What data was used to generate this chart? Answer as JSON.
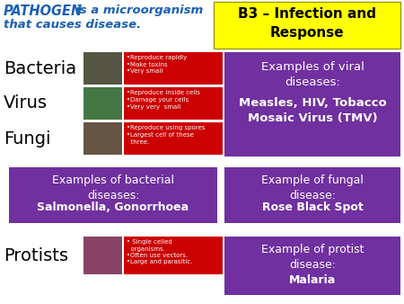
{
  "bg_color": "#ffffff",
  "title_pathogen": "PATHOGEN",
  "title_rest1": "  is a microorganism",
  "title_rest2": "that causes disease.",
  "title_color": "#1a5fb4",
  "header_box_color": "#ffff00",
  "header_text": "B3 – Infection and\nResponse",
  "purple": "#7030a0",
  "red": "#cc0000",
  "white": "#ffffff",
  "black": "#000000",
  "pathogen_labels": [
    "Bacteria",
    "Virus",
    "Fungi"
  ],
  "bacteria_facts": "•Reproduce rapidly\n•Make toxins\n•Very small",
  "virus_facts": "•Reproduce inside cells\n•Damage your cells\n•Very very  small",
  "fungi_facts": "•Reproduce using spores\n•Largest cell of these\n  three.",
  "viral_box_title": "Examples of viral\ndiseases:",
  "viral_box_examples": "Measles, HIV, Tobacco\nMosaic Virus (TMV)",
  "bacterial_box_title": "Examples of bacterial\ndiseases:",
  "bacterial_box_examples": "Salmonella, Gonorrhoea",
  "fungal_box_title": "Example of fungal\ndisease:",
  "fungal_box_examples": "Rose Black Spot",
  "protist_label": "Protists",
  "protist_facts": "• Single celled\n  organisms.\n•Often use vectors.\n•Large and parasitic.",
  "protist_box_title": "Example of protist\ndisease:",
  "protist_box_examples": "Malaria",
  "img_bacteria_color": "#555544",
  "img_virus_color": "#447744",
  "img_fungi_color": "#665544",
  "img_protist_color": "#884466"
}
